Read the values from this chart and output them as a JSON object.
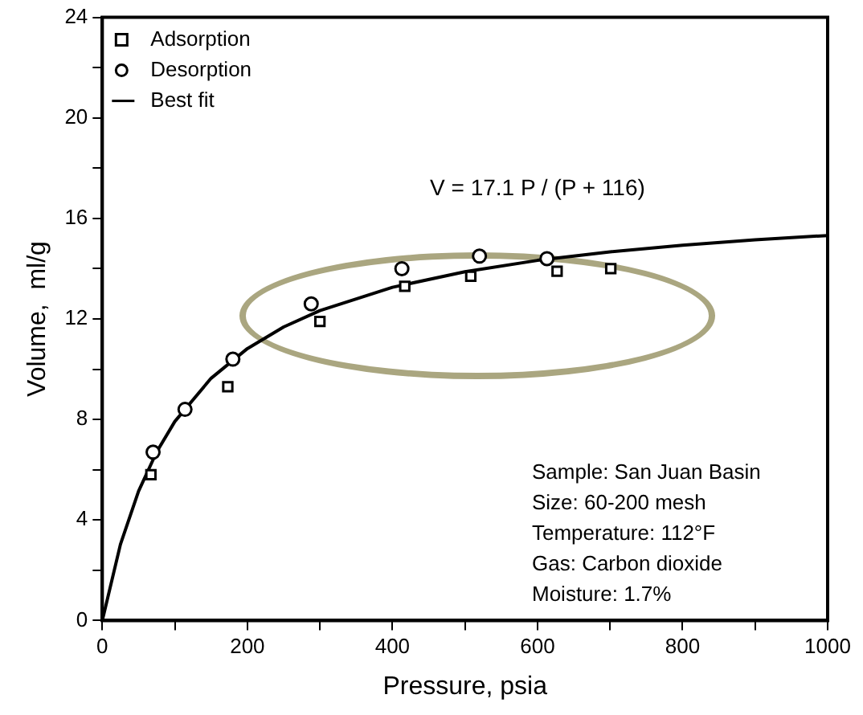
{
  "chart_data": {
    "type": "scatter",
    "xlabel": "Pressure, psia",
    "ylabel": "Volume,  ml/g",
    "xlim": [
      0,
      1000
    ],
    "ylim": [
      0,
      24
    ],
    "xticks": [
      0,
      {
        "value": 100,
        "label": null
      },
      200,
      {
        "value": 300,
        "label": null
      },
      400,
      {
        "value": 500,
        "label": null
      },
      600,
      {
        "value": 700,
        "label": null
      },
      800,
      {
        "value": 900,
        "label": null
      },
      1000
    ],
    "yticks": [
      0,
      {
        "value": 2,
        "label": null
      },
      4,
      {
        "value": 6,
        "label": null
      },
      8,
      {
        "value": 10,
        "label": null
      },
      12,
      {
        "value": 14,
        "label": null
      },
      16,
      {
        "value": 18,
        "label": null
      },
      20,
      {
        "value": 22,
        "label": null
      },
      24
    ],
    "grid": false,
    "legend": "top left",
    "series": [
      {
        "name": "Adsorption",
        "marker": "square",
        "color": "#000000",
        "x": [
          67,
          173,
          300,
          417,
          508,
          627,
          701
        ],
        "values": [
          5.8,
          9.3,
          11.9,
          13.3,
          13.7,
          13.9,
          14.0
        ]
      },
      {
        "name": "Desorption",
        "marker": "circle",
        "color": "#000000",
        "x": [
          70,
          114,
          180,
          288,
          413,
          520,
          613
        ],
        "values": [
          6.7,
          8.4,
          10.4,
          12.6,
          14.0,
          14.5,
          14.4
        ]
      },
      {
        "name": "Best fit",
        "type": "line",
        "marker": "none",
        "color": "#000000",
        "x": [
          0,
          25,
          50,
          75,
          100,
          150,
          200,
          250,
          300,
          400,
          500,
          600,
          700,
          800,
          900,
          1000
        ],
        "values": [
          0,
          3.03,
          5.15,
          6.71,
          7.92,
          9.64,
          10.82,
          11.68,
          12.33,
          13.26,
          13.88,
          14.33,
          14.67,
          14.93,
          15.15,
          15.32
        ]
      }
    ],
    "annotations": [
      "V = 17.1 P / (P + 116)",
      "Sample: San Juan Basin",
      "Size: 60-200 mesh",
      "Temperature: 112°F",
      "Gas: Carbon dioxide",
      "Moisture: 1.7%"
    ]
  }
}
